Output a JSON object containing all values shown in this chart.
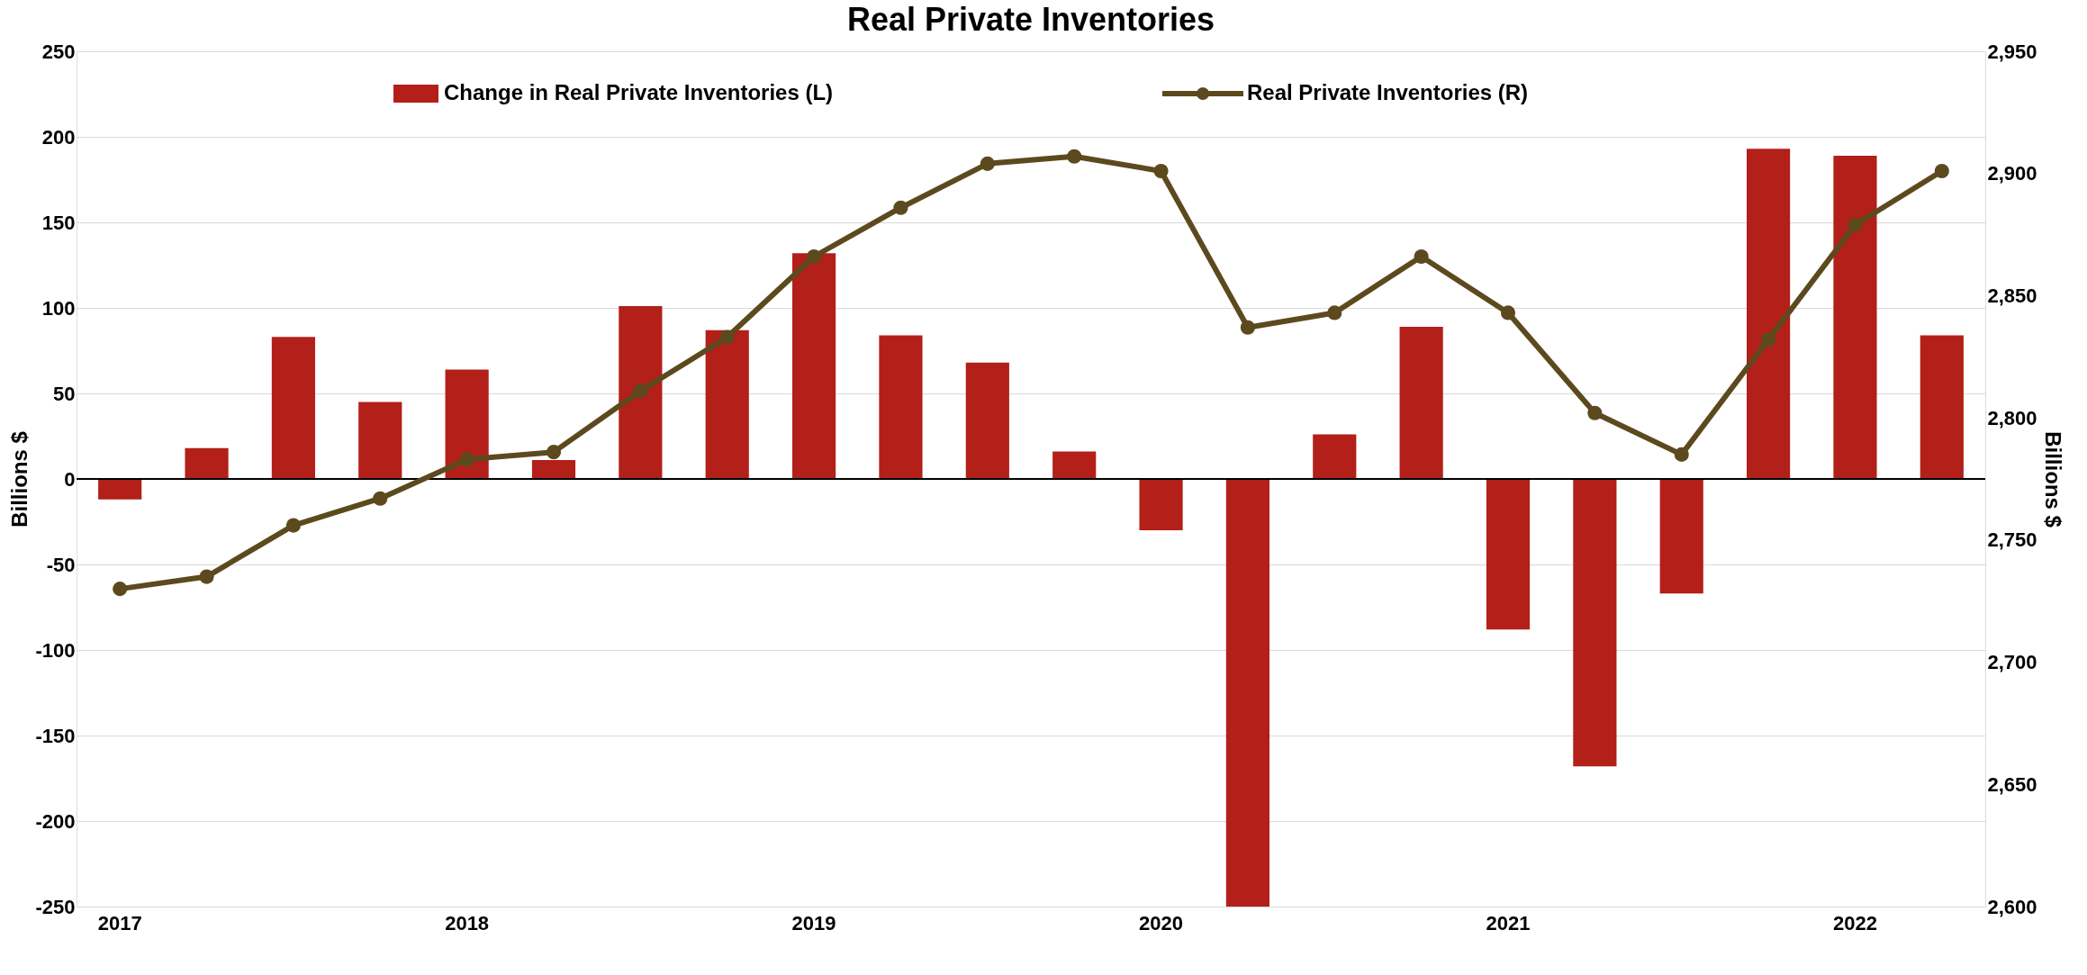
{
  "chart_data": {
    "type": "bar",
    "title": "Real Private Inventories",
    "ylabel": "Billions $",
    "y2label": "Billions $",
    "categories": [
      "2017",
      null,
      null,
      null,
      "2018",
      null,
      null,
      null,
      "2019",
      null,
      null,
      null,
      "2020",
      null,
      null,
      null,
      "2021",
      null,
      null,
      null,
      "2022",
      null
    ],
    "series": [
      {
        "name": "Change in Real Private Inventories (L)",
        "color": "#b22019",
        "values": [
          -12,
          18,
          83,
          45,
          64,
          11,
          101,
          87,
          132,
          84,
          68,
          16,
          -30,
          -250,
          26,
          89,
          -88,
          -168,
          -67,
          193,
          189,
          84
        ]
      },
      {
        "name": "Real Private Inventories (R)",
        "type": "line",
        "axis": "y2",
        "color": "#5c4a1e",
        "marker": "circle",
        "line_style": "solid",
        "values": [
          2730,
          2735,
          2756,
          2767,
          2783,
          2786,
          2811,
          2833,
          2866,
          2886,
          2904,
          2907,
          2901,
          2837,
          2843,
          2866,
          2843,
          2802,
          2785,
          2832,
          2879,
          2901
        ]
      }
    ],
    "ylim": [
      -250,
      250
    ],
    "yticks": [
      -250,
      -200,
      -150,
      -100,
      -50,
      0,
      50,
      100,
      150,
      200,
      250
    ],
    "y2lim": [
      2600,
      2950
    ],
    "y2ticks": [
      {
        "value": 2600,
        "label": "2,600"
      },
      {
        "value": 2650,
        "label": "2,650"
      },
      {
        "value": 2700,
        "label": "2,700"
      },
      {
        "value": 2750,
        "label": "2,750"
      },
      {
        "value": 2800,
        "label": "2,800"
      },
      {
        "value": 2850,
        "label": "2,850"
      },
      {
        "value": 2900,
        "label": "2,900"
      },
      {
        "value": 2950,
        "label": "2,950"
      }
    ],
    "ref_lines": [
      {
        "axis": "y",
        "value": 0,
        "color": "#000000"
      }
    ],
    "grid": "y",
    "legend": "top"
  }
}
